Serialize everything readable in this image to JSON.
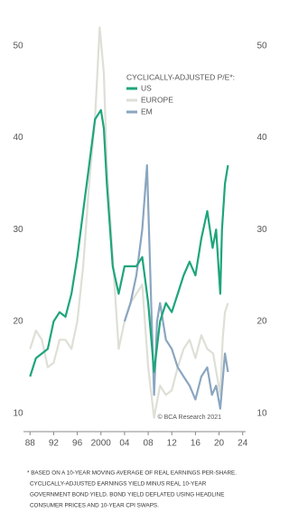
{
  "chart_data": {
    "type": "line",
    "legend_title": "CYCLICALLY-ADJUSTED P/E*:",
    "annotation": "© BCA Research 2021",
    "footnote": [
      "* BASED ON A 10-YEAR MOVING AVERAGE OF REAL EARNINGS PER-SHARE.",
      "CYCLICALLY-ADJUSTED EARNINGS YIELD MINUS REAL 10-YEAR",
      "GOVERNMENT BOND YIELD. BOND YIELD DEFLATED USING HEADLINE",
      "CONSUMER PRICES AND 10-YEAR CPI SWAPS."
    ],
    "xlim": [
      1987.5,
      2024.5
    ],
    "xticks": [
      {
        "value": 1988,
        "label": "88"
      },
      {
        "value": 1992,
        "label": "92"
      },
      {
        "value": 1996,
        "label": "96"
      },
      2000,
      {
        "value": 2004,
        "label": "04"
      },
      {
        "value": 2008,
        "label": "08"
      },
      {
        "value": 2012,
        "label": "12"
      },
      {
        "value": 2016,
        "label": "16"
      },
      {
        "value": 2020,
        "label": "20"
      },
      {
        "value": 2024,
        "label": "24"
      }
    ],
    "ylim": [
      8,
      54
    ],
    "yticks": [
      10,
      20,
      30,
      40,
      50
    ],
    "series": [
      {
        "name": "US",
        "color": "#1ea57c",
        "x": [
          1988,
          1989,
          1990,
          1991,
          1992,
          1993,
          1994,
          1995,
          1996,
          1997,
          1998,
          1999,
          2000,
          2000.5,
          2001,
          2002,
          2003,
          2004,
          2005,
          2006,
          2007,
          2008,
          2009,
          2010,
          2011,
          2012,
          2013,
          2014,
          2015,
          2016,
          2017,
          2018,
          2018.9,
          2019.5,
          2020.2,
          2020.5,
          2021,
          2021.5
        ],
        "values": [
          14,
          16,
          16.5,
          17,
          20,
          21,
          20.5,
          23,
          27,
          32,
          37,
          42,
          43,
          41,
          35,
          26,
          23,
          26,
          26,
          26,
          27,
          22,
          14.5,
          20,
          22,
          21,
          23,
          25,
          26.5,
          25,
          29,
          32,
          28,
          30,
          23,
          30,
          35,
          37
        ]
      },
      {
        "name": "EUROPE",
        "color": "#dedfd6",
        "x": [
          1988,
          1989,
          1990,
          1991,
          1992,
          1993,
          1994,
          1995,
          1996,
          1997,
          1998,
          1999,
          1999.8,
          2000.5,
          2001,
          2002,
          2003,
          2004,
          2005,
          2006,
          2007,
          2008,
          2009,
          2010,
          2011,
          2012,
          2013,
          2014,
          2015,
          2016,
          2017,
          2018,
          2019,
          2020.2,
          2020.6,
          2021,
          2021.5
        ],
        "values": [
          17,
          19,
          18,
          15,
          15.5,
          18,
          18,
          17,
          20,
          26,
          35,
          42,
          52,
          47,
          37,
          27,
          17,
          20,
          22,
          23,
          24,
          15,
          9.5,
          13,
          12,
          12.5,
          15,
          17,
          18,
          16,
          18.5,
          17,
          16.5,
          12,
          18,
          21,
          22
        ]
      },
      {
        "name": "EM",
        "color": "#8aa6c0",
        "x": [
          2004,
          2005,
          2006,
          2007,
          2007.8,
          2008.5,
          2009,
          2009.5,
          2010,
          2011,
          2012,
          2013,
          2014,
          2015,
          2016,
          2017,
          2018,
          2018.8,
          2019.5,
          2020.2,
          2020.8,
          2021,
          2021.5
        ],
        "values": [
          20,
          22,
          25,
          30,
          37,
          22,
          12,
          20,
          22,
          18,
          17,
          15,
          14,
          13,
          11.5,
          14,
          15,
          12,
          13,
          10.5,
          15,
          16.5,
          14.5
        ]
      }
    ]
  }
}
